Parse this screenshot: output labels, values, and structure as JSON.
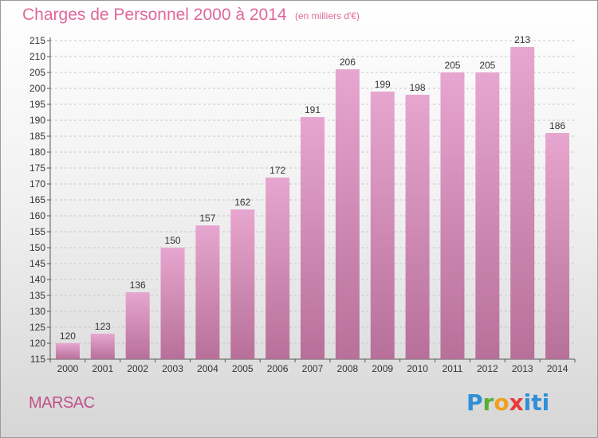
{
  "header": {
    "title": "Charges de Personnel 2000 à 2014",
    "subtitle": "(en milliers d'€)"
  },
  "footer": {
    "city": "MARSAC",
    "logo": "Proxiti"
  },
  "colors": {
    "bar_top": "#e7a6cf",
    "bar_bottom": "#b77099",
    "text_accent": "#e0689a"
  },
  "chart_data": {
    "type": "bar",
    "title": "Charges de Personnel 2000 à 2014",
    "subtitle": "(en milliers d'€)",
    "categories": [
      "2000",
      "2001",
      "2002",
      "2003",
      "2004",
      "2005",
      "2006",
      "2007",
      "2008",
      "2009",
      "2010",
      "2011",
      "2012",
      "2013",
      "2014"
    ],
    "values": [
      120,
      123,
      136,
      150,
      157,
      162,
      172,
      191,
      206,
      199,
      198,
      205,
      205,
      213,
      186
    ],
    "ylim": [
      115,
      215
    ],
    "yticks": [
      115,
      120,
      125,
      130,
      135,
      140,
      145,
      150,
      155,
      160,
      165,
      170,
      175,
      180,
      185,
      190,
      195,
      200,
      205,
      210,
      215
    ],
    "grid": true,
    "legend": "none"
  }
}
